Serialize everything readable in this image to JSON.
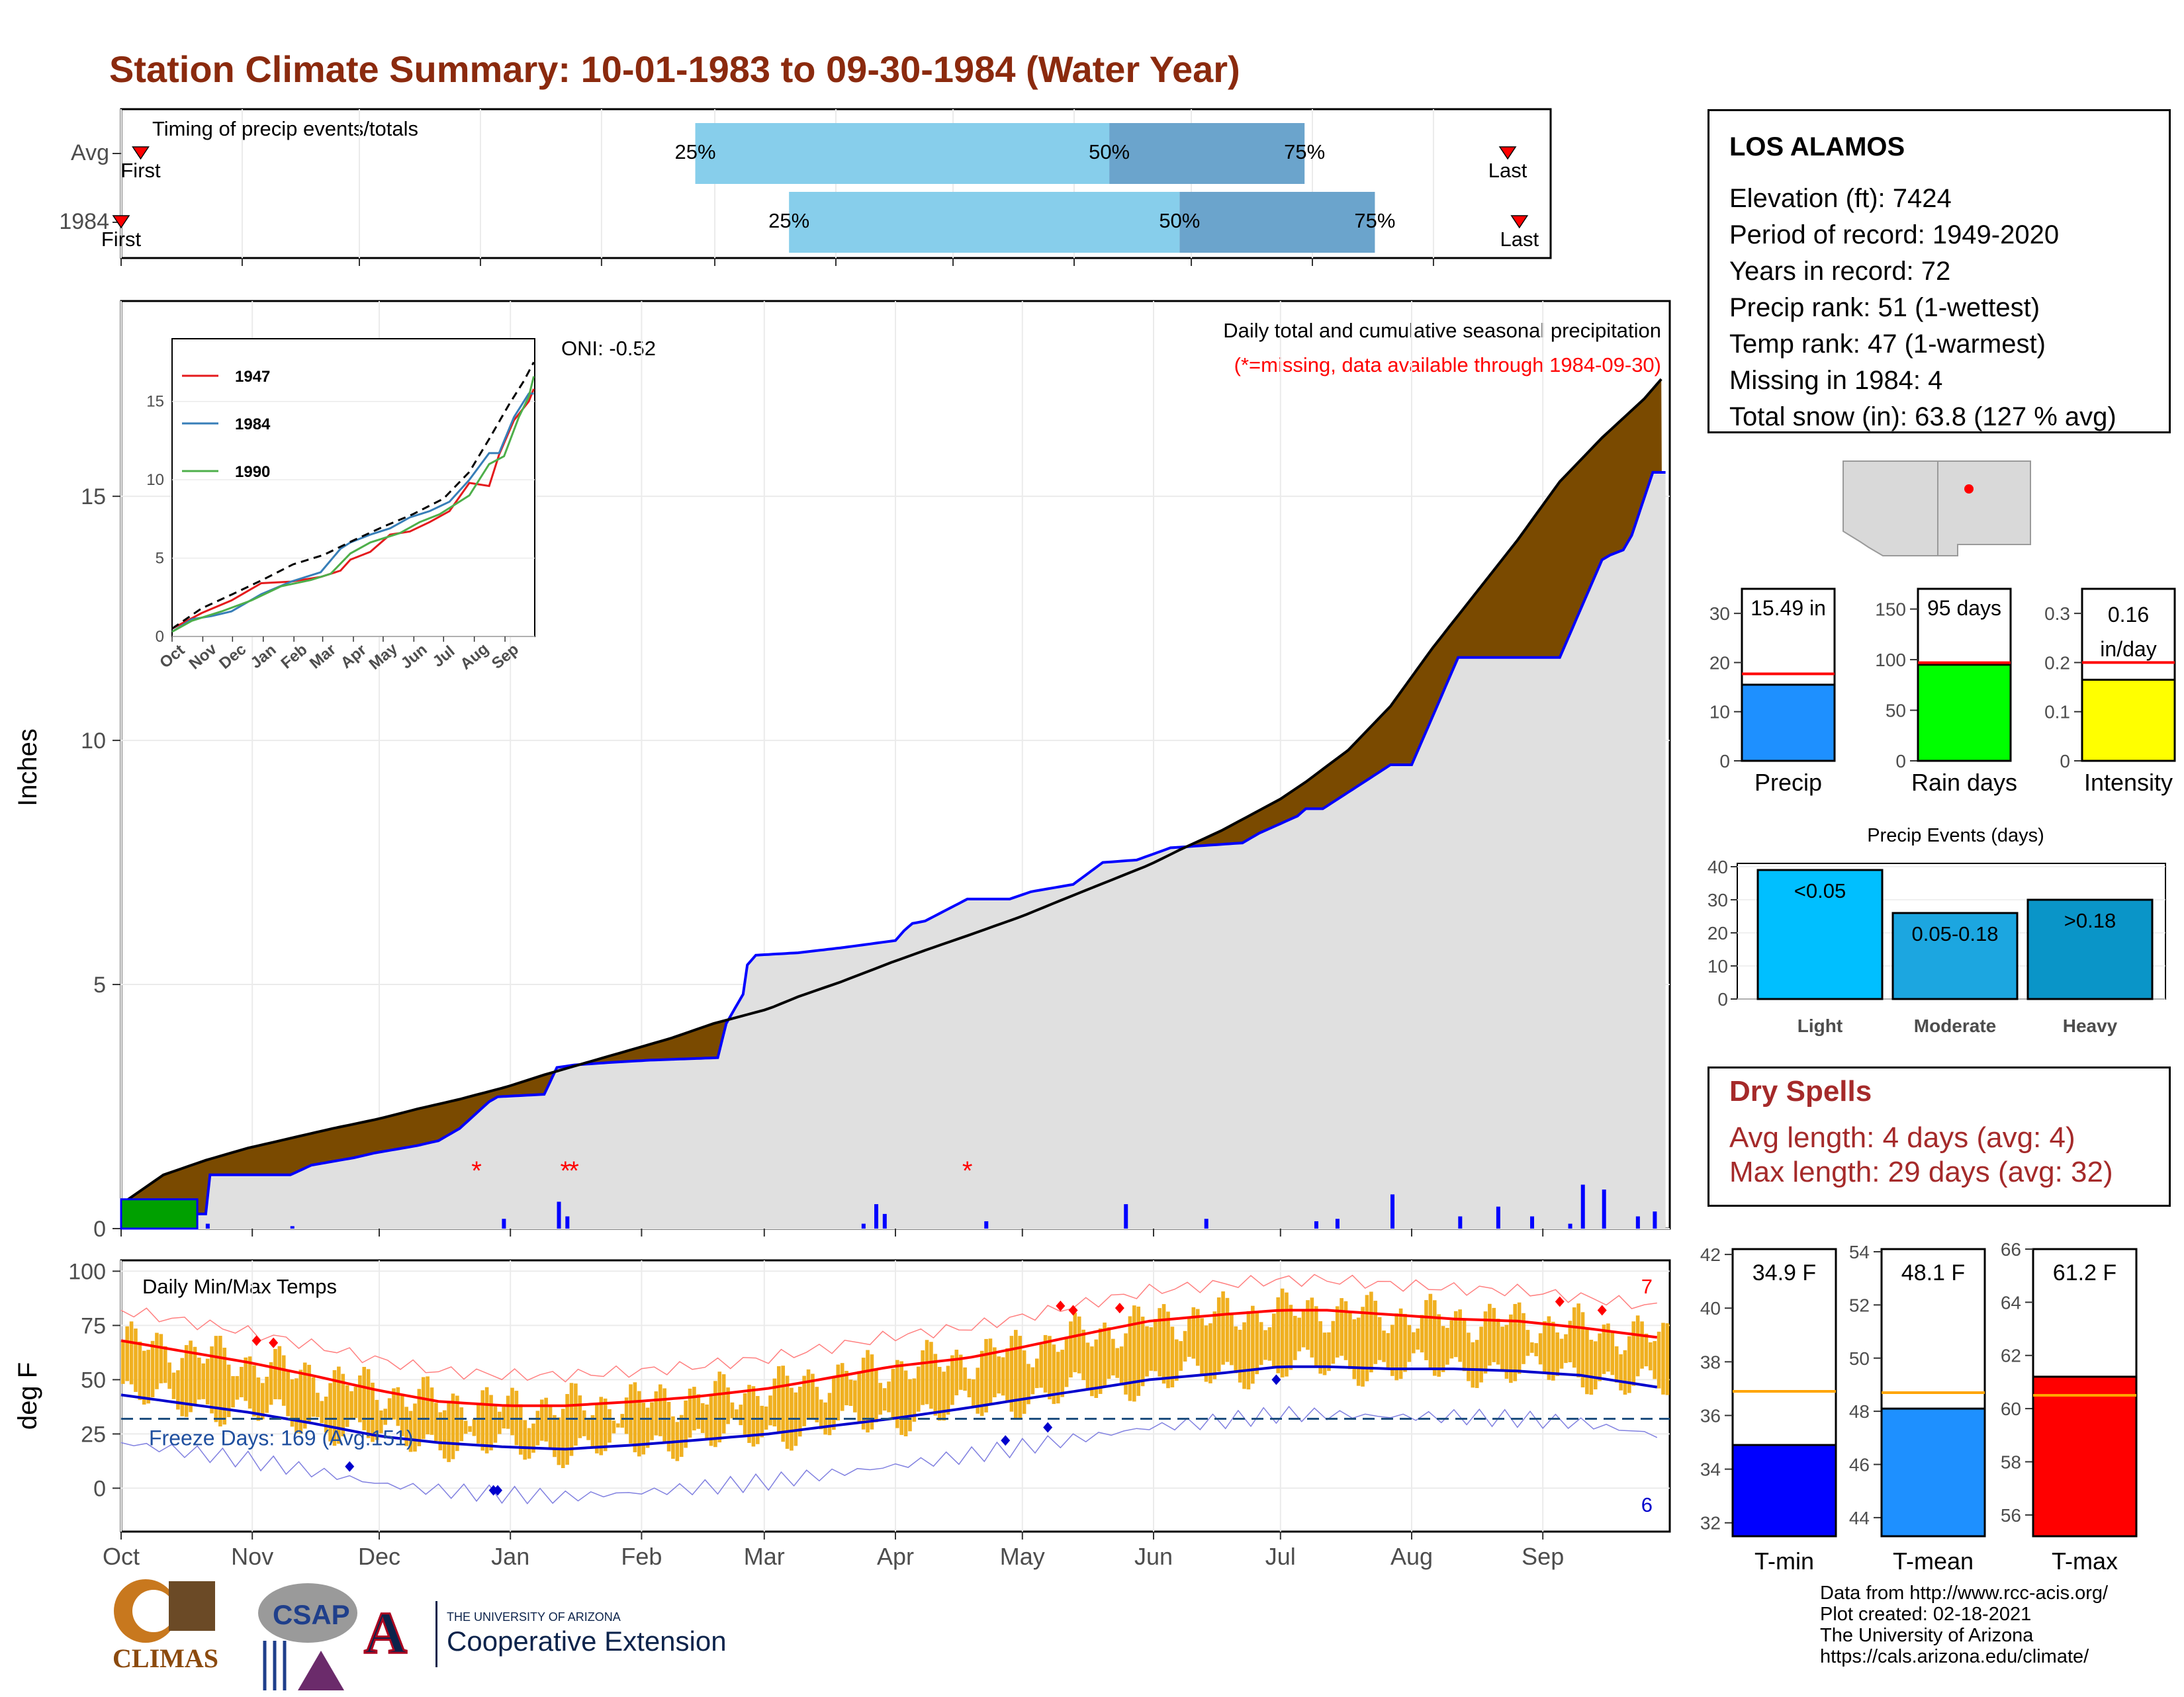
{
  "title": "Station Climate Summary: 10-01-1983 to 09-30-1984 (Water Year)",
  "station": {
    "name": "LOS ALAMOS",
    "lines": [
      "Elevation (ft): 7424",
      "Period of record: 1949-2020",
      "Years in record: 72",
      "Precip rank: 51 (1-wettest)",
      "Temp rank: 47 (1-warmest)",
      "Missing in 1984: 4",
      "Total snow (in): 63.8 (127 % avg)"
    ]
  },
  "dry_spells": {
    "title": "Dry Spells",
    "avg_length": "Avg length: 4 days (avg: 4)",
    "max_length": "Max length: 29 days (avg: 32)"
  },
  "credits": [
    "Data from http://www.rcc-acis.org/",
    "Plot created: 02-18-2021",
    "The University of Arizona",
    "https://cals.arizona.edu/climate/"
  ],
  "logos": {
    "climas": "CLIMAS",
    "csap": "CSAP",
    "ua_small": "THE UNIVERSITY OF ARIZONA",
    "ua_big": "Cooperative Extension",
    "ua_letter": "A"
  },
  "colors": {
    "title": "#8b2a0e",
    "quartile_light": "#87ceeb",
    "quartile_dark": "#6ba4cc",
    "cum_fill": "#7a4a00",
    "avg_fill": "#e0e0e0",
    "precip_line": "#0000ff",
    "temp_bar": "#f0b020",
    "tmax_line": "#ff0000",
    "tmin_line": "#0000cc",
    "dry_title": "#a52a2a"
  },
  "chart_data": [
    {
      "type": "bar",
      "id": "timing",
      "title": "Timing of precip events/totals",
      "categories": [
        "Avg",
        "1984"
      ],
      "months": [
        "Oct",
        "Nov",
        "Dec",
        "Jan",
        "Feb",
        "Mar",
        "Apr",
        "May",
        "Jun",
        "Jul",
        "Aug",
        "Sep"
      ],
      "series": [
        {
          "name": "Avg",
          "first_label": "First",
          "last_label": "Last",
          "q25_label": "25%",
          "q50_label": "50%",
          "q75_label": "75%",
          "q25_day": 147,
          "q50_day": 253,
          "q75_day": 303,
          "first_day": 5,
          "last_day": 355
        },
        {
          "name": "1984",
          "first_label": "First",
          "last_label": "Last",
          "q25_label": "25%",
          "q50_label": "50%",
          "q75_label": "75%",
          "q25_day": 171,
          "q50_day": 271,
          "q75_day": 321,
          "first_day": 0,
          "last_day": 358
        }
      ]
    },
    {
      "type": "area",
      "id": "precip",
      "title": "Daily total and cumulative seasonal precipitation",
      "subtitle": "(*=missing, data available through 1984-09-30)",
      "ylabel": "Inches",
      "oni": "ONI: -0.52",
      "ylim": [
        0,
        19
      ],
      "yticks": [
        0,
        5,
        10,
        15
      ],
      "months": [
        "Oct",
        "Nov",
        "Dec",
        "Jan",
        "Feb",
        "Mar",
        "Apr",
        "May",
        "Jun",
        "Jul",
        "Aug",
        "Sep"
      ],
      "corner_count": "2",
      "avg_cumulative": {
        "x": [
          0,
          5,
          10,
          20,
          30,
          40,
          50,
          61,
          70,
          80,
          91,
          100,
          110,
          122,
          130,
          140,
          153,
          160,
          170,
          182,
          190,
          200,
          213,
          220,
          230,
          243,
          250,
          260,
          274,
          280,
          290,
          300,
          305,
          310,
          320,
          330,
          340,
          350,
          355,
          360,
          365
        ],
        "y": [
          0.5,
          0.8,
          1.1,
          1.4,
          1.65,
          1.85,
          2.05,
          2.25,
          2.45,
          2.65,
          2.9,
          3.15,
          3.4,
          3.7,
          3.9,
          4.2,
          4.5,
          4.75,
          5.05,
          5.45,
          5.7,
          6.0,
          6.4,
          6.65,
          7.0,
          7.45,
          7.75,
          8.15,
          8.8,
          9.15,
          9.8,
          10.7,
          11.3,
          11.9,
          13.0,
          14.1,
          15.3,
          16.2,
          16.6,
          17.0,
          17.5
        ]
      },
      "observed_cumulative": {
        "x": [
          0,
          20,
          21,
          40,
          45,
          55,
          60,
          70,
          75,
          80,
          87,
          89,
          100,
          103,
          107,
          115,
          125,
          141,
          143,
          147,
          148,
          150,
          160,
          170,
          183,
          185,
          187,
          190,
          200,
          210,
          215,
          225,
          232,
          240,
          248,
          265,
          269,
          278,
          280,
          283,
          284,
          300,
          305,
          310,
          316,
          340,
          350,
          352,
          355,
          357,
          362,
          365
        ],
        "y": [
          0.3,
          0.3,
          1.1,
          1.1,
          1.3,
          1.45,
          1.55,
          1.7,
          1.8,
          2.05,
          2.6,
          2.7,
          2.75,
          3.3,
          3.35,
          3.4,
          3.45,
          3.5,
          4.2,
          4.8,
          5.4,
          5.6,
          5.65,
          5.75,
          5.9,
          6.1,
          6.25,
          6.3,
          6.75,
          6.75,
          6.9,
          7.05,
          7.5,
          7.55,
          7.8,
          7.9,
          8.1,
          8.45,
          8.6,
          8.6,
          8.6,
          9.5,
          9.5,
          10.5,
          11.7,
          11.7,
          13.7,
          13.8,
          13.9,
          14.2,
          15.49,
          15.49
        ]
      },
      "daily_bars": {
        "x": [
          20,
          40,
          90,
          103,
          105,
          175,
          178,
          180,
          204,
          237,
          256,
          282,
          287,
          300,
          316,
          325,
          333,
          342,
          345,
          350,
          358,
          362
        ],
        "y": [
          0.1,
          0.05,
          0.2,
          0.55,
          0.25,
          0.1,
          0.5,
          0.3,
          0.15,
          0.5,
          0.2,
          0.15,
          0.2,
          0.7,
          0.25,
          0.45,
          0.25,
          0.1,
          0.9,
          0.8,
          0.25,
          0.35
        ]
      },
      "missing_days": [
        84,
        105,
        107,
        200
      ]
    },
    {
      "type": "line",
      "id": "analogs",
      "series": [
        {
          "name": "1947",
          "color": "#e41a1c",
          "x": [
            0,
            30,
            60,
            90,
            120,
            150,
            170,
            180,
            200,
            220,
            240,
            260,
            280,
            300,
            320,
            330,
            345,
            360,
            365
          ],
          "y": [
            0.5,
            1.5,
            2.3,
            3.4,
            3.5,
            3.8,
            4.2,
            4.9,
            5.4,
            6.5,
            6.7,
            7.3,
            8.0,
            9.8,
            9.6,
            11.6,
            13.8,
            15.0,
            15.8
          ]
        },
        {
          "name": "1984",
          "color": "#377eb8",
          "x": [
            0,
            20,
            40,
            60,
            90,
            120,
            150,
            170,
            180,
            200,
            220,
            240,
            260,
            280,
            300,
            320,
            330,
            345,
            360,
            365
          ],
          "y": [
            0.3,
            1.1,
            1.3,
            1.6,
            2.7,
            3.5,
            4.1,
            5.6,
            6.0,
            6.5,
            6.9,
            7.6,
            8.0,
            8.6,
            10.0,
            11.7,
            11.7,
            14.0,
            15.5,
            15.5
          ]
        },
        {
          "name": "1990",
          "color": "#4daf4a",
          "x": [
            0,
            20,
            50,
            80,
            110,
            140,
            160,
            180,
            200,
            230,
            250,
            270,
            300,
            320,
            335,
            350,
            360,
            365
          ],
          "y": [
            0.3,
            1.0,
            1.6,
            2.3,
            3.2,
            3.6,
            4.0,
            5.3,
            6.0,
            6.6,
            7.3,
            7.8,
            9.0,
            11.0,
            11.5,
            14.0,
            15.3,
            16.6
          ]
        },
        {
          "name": "",
          "color": "#000000",
          "dash": true,
          "x": [
            0,
            30,
            61,
            91,
            122,
            153,
            182,
            213,
            243,
            274,
            300,
            320,
            340,
            355,
            365
          ],
          "y": [
            0.5,
            1.8,
            2.7,
            3.6,
            4.6,
            5.2,
            6.1,
            7.0,
            7.8,
            8.8,
            10.5,
            12.6,
            14.8,
            16.3,
            17.5
          ]
        }
      ],
      "xticks": [
        "Oct",
        "Nov",
        "Dec",
        "Jan",
        "Feb",
        "Mar",
        "Apr",
        "May",
        "Jun",
        "Jul",
        "Aug",
        "Sep"
      ],
      "yticks": [
        0,
        5,
        10,
        15
      ],
      "ylim": [
        0,
        19
      ]
    },
    {
      "type": "line",
      "id": "temps",
      "title": "Daily Min/Max Temps",
      "ylabel": "deg F",
      "ylim": [
        -20,
        105
      ],
      "yticks": [
        0,
        25,
        50,
        75,
        100
      ],
      "months": [
        "Oct",
        "Nov",
        "Dec",
        "Jan",
        "Feb",
        "Mar",
        "Apr",
        "May",
        "Jun",
        "Jul",
        "Aug",
        "Sep"
      ],
      "freeze_label": "Freeze Days: 169 (Avg:151)",
      "freeze_threshold": 32,
      "record_high_count": "7",
      "record_low_count": "6",
      "avg_tmax": {
        "x": [
          0,
          15,
          30,
          45,
          61,
          75,
          91,
          105,
          122,
          135,
          153,
          165,
          182,
          200,
          213,
          230,
          243,
          260,
          274,
          285,
          300,
          315,
          330,
          345,
          365
        ],
        "y": [
          68,
          63,
          58,
          52,
          45,
          40,
          38,
          38,
          40,
          42,
          46,
          50,
          56,
          60,
          65,
          72,
          77,
          80,
          82,
          82,
          80,
          78,
          77,
          74,
          69
        ]
      },
      "avg_tmin": {
        "x": [
          0,
          15,
          30,
          45,
          61,
          75,
          91,
          105,
          122,
          135,
          153,
          165,
          182,
          200,
          213,
          230,
          243,
          260,
          274,
          285,
          300,
          315,
          330,
          345,
          365
        ],
        "y": [
          43,
          39,
          35,
          30,
          24,
          21,
          19,
          18,
          20,
          22,
          25,
          28,
          32,
          37,
          41,
          46,
          50,
          53,
          56,
          56,
          55,
          55,
          54,
          52,
          46
        ]
      },
      "record_high_marks": {
        "x": [
          32,
          36,
          222,
          225,
          236,
          340,
          350
        ],
        "y": [
          68,
          67,
          84,
          82,
          83,
          86,
          82
        ]
      },
      "record_low_marks": {
        "x": [
          54,
          88,
          89,
          209,
          219,
          273
        ],
        "y": [
          10,
          -1,
          -1,
          22,
          28,
          50
        ]
      }
    },
    {
      "type": "bar",
      "id": "precip_totals",
      "categories": [
        "Precip",
        "Rain days",
        "Intensity"
      ],
      "series": [
        {
          "name": "Precip",
          "label": "15.49 in",
          "value": 15.49,
          "avg": 17.7,
          "ylim": [
            0,
            35
          ],
          "yticks": [
            0,
            10,
            20,
            30
          ],
          "color": "#1e90ff"
        },
        {
          "name": "Rain days",
          "label": "95 days",
          "value": 95,
          "avg": 97,
          "ylim": [
            0,
            170
          ],
          "yticks": [
            0,
            50,
            100,
            150
          ],
          "color": "#00ff00"
        },
        {
          "name": "Intensity",
          "label_line1": "0.16",
          "label_line2": "in/day",
          "value": 0.165,
          "avg": 0.2,
          "ylim": [
            0,
            0.35
          ],
          "yticks": [
            0.0,
            0.1,
            0.2,
            0.3
          ],
          "color": "#ffff00"
        }
      ]
    },
    {
      "type": "bar",
      "id": "precip_events",
      "title": "Precip Events (days)",
      "categories": [
        "Light",
        "Moderate",
        "Heavy"
      ],
      "labels": [
        "<0.05",
        "0.05-0.18",
        ">0.18"
      ],
      "values": [
        39,
        26,
        30
      ],
      "ylim": [
        0,
        41
      ],
      "yticks": [
        0,
        10,
        20,
        30,
        40
      ],
      "colors": [
        "#00bfff",
        "#1ca6e0",
        "#0a95c8"
      ]
    },
    {
      "type": "bar",
      "id": "temp_means",
      "categories": [
        "T-min",
        "T-mean",
        "T-max"
      ],
      "series": [
        {
          "name": "T-min",
          "label": "34.9 F",
          "value": 34.9,
          "avg": 36.9,
          "ylim": [
            31.5,
            42.2
          ],
          "yticks": [
            32,
            34,
            36,
            38,
            40,
            42
          ],
          "color": "#0000ff"
        },
        {
          "name": "T-mean",
          "label": "48.1 F",
          "value": 48.1,
          "avg": 48.7,
          "ylim": [
            43.3,
            54.1
          ],
          "yticks": [
            44,
            46,
            48,
            50,
            52,
            54
          ],
          "color": "#1e90ff"
        },
        {
          "name": "T-max",
          "label": "61.2 F",
          "value": 61.2,
          "avg": 60.5,
          "ylim": [
            55.2,
            66.0
          ],
          "yticks": [
            56,
            58,
            60,
            62,
            64,
            66
          ],
          "color": "#ff0000"
        }
      ]
    }
  ]
}
